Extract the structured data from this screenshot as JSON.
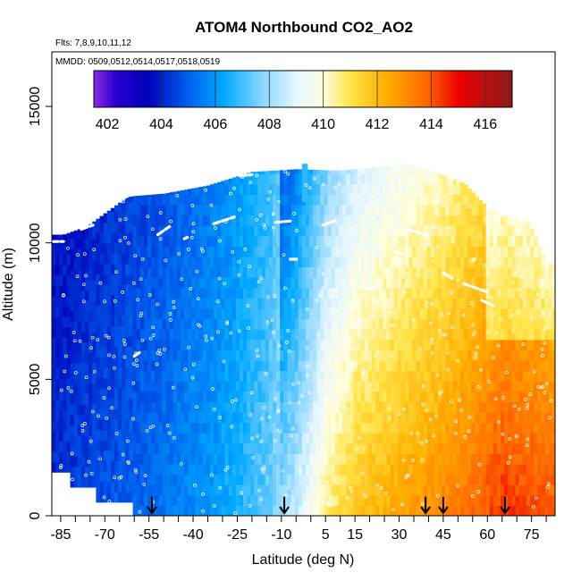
{
  "chart_data": {
    "type": "heatmap",
    "title": "ATOM4 Northbound CO2_AO2",
    "annotations": {
      "flights": "Flts: 7,8,9,10,11,12",
      "dates": "MMDD: 0509,0512,0514,0517,0518,0519"
    },
    "xlabel": "Latitude (deg N)",
    "ylabel": "Altitude (m)",
    "xlim": [
      -88,
      83
    ],
    "ylim": [
      0,
      17000
    ],
    "x_ticks": [
      -85,
      -70,
      -55,
      -40,
      -25,
      -10,
      5,
      15,
      30,
      45,
      60,
      75
    ],
    "x_tick_labels": [
      "-85",
      "-70",
      "-55",
      "-40",
      "-25",
      "-10",
      "5",
      "15",
      "30",
      "45",
      "60",
      "75"
    ],
    "x_minor_ticks": [
      -80,
      -75,
      -65,
      -60,
      -50,
      -45,
      -35,
      -30,
      -20,
      -15,
      -5,
      0,
      10,
      20,
      25,
      35,
      40,
      50,
      55,
      65,
      70,
      80
    ],
    "y_ticks": [
      0,
      5000,
      10000,
      15000
    ],
    "y_tick_labels": [
      "0",
      "5000",
      "10000",
      "15000"
    ],
    "colorbar": {
      "min": 401.5,
      "max": 417,
      "tick_values": [
        402,
        404,
        406,
        408,
        410,
        412,
        414,
        416
      ],
      "tick_labels": [
        "402",
        "404",
        "406",
        "408",
        "410",
        "412",
        "414",
        "416"
      ],
      "stops": [
        {
          "v": 401.5,
          "color": "#8b2be2"
        },
        {
          "v": 402.3,
          "color": "#2a00d0"
        },
        {
          "v": 403.5,
          "color": "#0000b8"
        },
        {
          "v": 405.0,
          "color": "#0060ee"
        },
        {
          "v": 406.3,
          "color": "#00a8ff"
        },
        {
          "v": 407.8,
          "color": "#8fd8ff"
        },
        {
          "v": 409.0,
          "color": "#e6f6ff"
        },
        {
          "v": 410.0,
          "color": "#ffffe0"
        },
        {
          "v": 411.0,
          "color": "#ffe44a"
        },
        {
          "v": 412.3,
          "color": "#ffb000"
        },
        {
          "v": 413.8,
          "color": "#ff6a00"
        },
        {
          "v": 415.0,
          "color": "#ee0000"
        },
        {
          "v": 416.2,
          "color": "#b01010"
        },
        {
          "v": 417.0,
          "color": "#8a1a1a"
        }
      ]
    },
    "curtain_profile": {
      "latitude": [
        -88,
        -85,
        -75,
        -65,
        -55,
        -45,
        -35,
        -25,
        -15,
        -5,
        5,
        15,
        25,
        35,
        45,
        55,
        65,
        75,
        83
      ],
      "co2_ppm": [
        404.2,
        404.3,
        404.6,
        404.9,
        405.2,
        405.6,
        406.0,
        406.6,
        407.3,
        408.6,
        410.6,
        411.8,
        412.3,
        412.8,
        413.2,
        413.8,
        414.5,
        414.3,
        414.0
      ]
    },
    "flight_marker_latitudes": [
      -54,
      -9,
      39,
      45,
      66
    ]
  }
}
